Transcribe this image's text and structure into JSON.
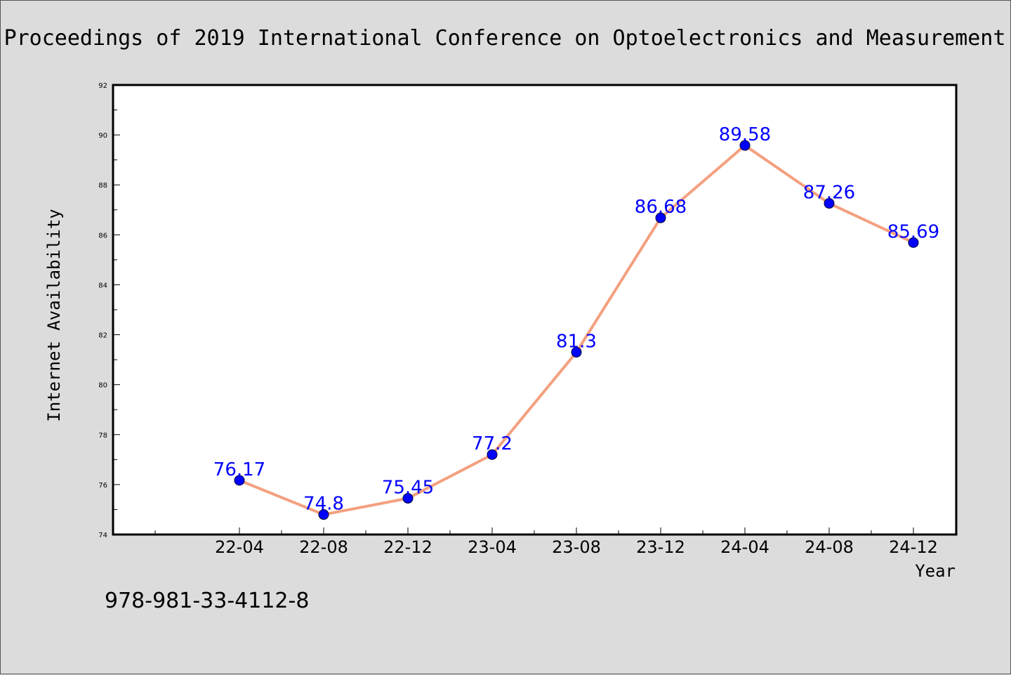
{
  "header": {
    "title": "Proceedings of 2019 International Conference on Optoelectronics and Measurement"
  },
  "footer": {
    "isbn": "978-981-33-4112-8"
  },
  "colors": {
    "line": "#f4a07f",
    "marker": "#0000ff",
    "label": "#0000ff",
    "background": "#dcdcdc",
    "plot_background": "#ffffff"
  },
  "chart_data": {
    "type": "line",
    "title": "",
    "xlabel": "Year",
    "ylabel": "Internet Availability",
    "categories": [
      "22-04",
      "22-08",
      "22-12",
      "23-04",
      "23-08",
      "23-12",
      "24-04",
      "24-08",
      "24-12"
    ],
    "series": [
      {
        "values": [
          76.17,
          74.8,
          75.45,
          77.2,
          81.3,
          86.68,
          89.58,
          87.26,
          85.69
        ],
        "data_labels": [
          "76.17",
          "74.8",
          "75.45",
          "77.2",
          "81.3",
          "86.68",
          "89.58",
          "87.26",
          "85.69"
        ]
      }
    ],
    "yticks": [
      "74",
      "76",
      "78",
      "80",
      "82",
      "84",
      "86",
      "88",
      "90",
      "92"
    ],
    "ylim": [
      74,
      92
    ],
    "grid": false,
    "legend": "none"
  }
}
